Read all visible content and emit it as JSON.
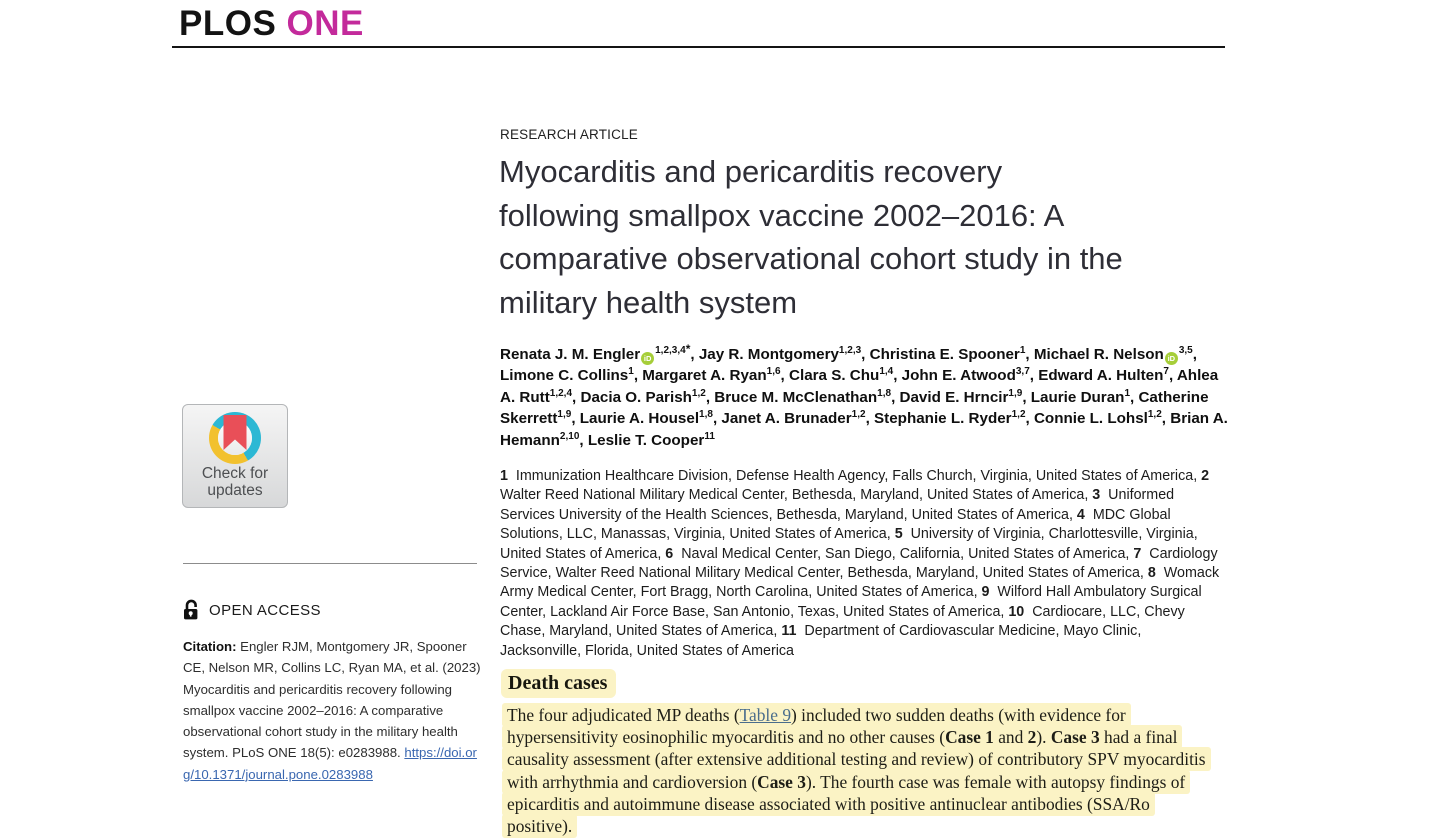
{
  "colors": {
    "brand_magenta": "#c32a9b",
    "highlight": "#fbf3c5",
    "link_blue": "#3a67b0",
    "table_link": "#4a6d8c",
    "orcid_green": "#a6ce39",
    "cm_teal": "#2cb8d4",
    "cm_yellow": "#f2c12e",
    "cm_red": "#e94f58"
  },
  "header": {
    "brand_plos": "PLOS ",
    "brand_one": "ONE"
  },
  "sidebar": {
    "check_updates_label": "Check for updates",
    "open_access_label": "OPEN ACCESS",
    "citation_label": "Citation:",
    "citation_text": " Engler RJM, Montgomery JR, Spooner CE, Nelson MR, Collins LC, Ryan MA, et al. (2023) Myocarditis and pericarditis recovery following smallpox vaccine 2002–2016: A comparative observational cohort study in the military health system. PLoS ONE 18(5): e0283988. ",
    "citation_link": "https://doi.org/10.1371/journal.pone.0283988"
  },
  "article": {
    "kicker": "RESEARCH ARTICLE",
    "title_lines": [
      "Myocarditis and pericarditis recovery",
      "following smallpox vaccine 2002–2016: A",
      "comparative observational cohort study in the",
      "military health system"
    ],
    "authors": [
      {
        "name": "Renata J. M. Engler",
        "orcid": true,
        "sup": "1,2,3,4",
        "ast": true
      },
      {
        "name": "Jay R. Montgomery",
        "sup": "1,2,3"
      },
      {
        "name": "Christina E. Spooner",
        "sup": "1"
      },
      {
        "name": "Michael R. Nelson",
        "orcid": true,
        "sup": "3,5"
      },
      {
        "name": "Limone C. Collins",
        "sup": "1"
      },
      {
        "name": "Margaret A. Ryan",
        "sup": "1,6"
      },
      {
        "name": "Clara S. Chu",
        "sup": "1,4"
      },
      {
        "name": "John E. Atwood",
        "sup": "3,7"
      },
      {
        "name": "Edward A. Hulten",
        "sup": "7"
      },
      {
        "name": "Ahlea A. Rutt",
        "sup": "1,2,4"
      },
      {
        "name": "Dacia O. Parish",
        "sup": "1,2"
      },
      {
        "name": "Bruce M. McClenathan",
        "sup": "1,8"
      },
      {
        "name": "David E. Hrncir",
        "sup": "1,9"
      },
      {
        "name": "Laurie Duran",
        "sup": "1"
      },
      {
        "name": "Catherine Skerrett",
        "sup": "1,9"
      },
      {
        "name": "Laurie A. Housel",
        "sup": "1,8"
      },
      {
        "name": "Janet A. Brunader",
        "sup": "1,2"
      },
      {
        "name": "Stephanie L. Ryder",
        "sup": "1,2"
      },
      {
        "name": "Connie L. Lohsl",
        "sup": "1,2"
      },
      {
        "name": "Brian A. Hemann",
        "sup": "2,10"
      },
      {
        "name": "Leslie T. Cooper",
        "sup": "11"
      }
    ],
    "affiliations": [
      {
        "num": "1",
        "text": "Immunization Healthcare Division, Defense Health Agency, Falls Church, Virginia, United States of America"
      },
      {
        "num": "2",
        "text": "Walter Reed National Military Medical Center, Bethesda, Maryland, United States of America"
      },
      {
        "num": "3",
        "text": "Uniformed Services University of the Health Sciences, Bethesda, Maryland, United States of America"
      },
      {
        "num": "4",
        "text": "MDC Global Solutions, LLC, Manassas, Virginia, United States of America"
      },
      {
        "num": "5",
        "text": "University of Virginia, Charlottesville, Virginia, United States of America"
      },
      {
        "num": "6",
        "text": "Naval Medical Center, San Diego, California, United States of America"
      },
      {
        "num": "7",
        "text": "Cardiology Service, Walter Reed National Military Medical Center, Bethesda, Maryland, United States of America"
      },
      {
        "num": "8",
        "text": "Womack Army Medical Center, Fort Bragg, North Carolina, United States of America"
      },
      {
        "num": "9",
        "text": "Wilford Hall Ambulatory Surgical Center, Lackland Air Force Base, San Antonio, Texas, United States of America"
      },
      {
        "num": "10",
        "text": "Cardiocare, LLC, Chevy Chase, Maryland, United States of America"
      },
      {
        "num": "11",
        "text": "Department of Cardiovascular Medicine, Mayo Clinic, Jacksonville, Florida, United States of America"
      }
    ],
    "section": {
      "heading": "Death cases",
      "segments": [
        {
          "t": "The four adjudicated MP deaths ("
        },
        {
          "t": "Table 9",
          "link": true
        },
        {
          "t": ") included two sudden deaths (with evidence for hypersensitivity eosinophilic myocarditis and no other causes ("
        },
        {
          "t": "Case 1",
          "b": true
        },
        {
          "t": " and "
        },
        {
          "t": "2",
          "b": true
        },
        {
          "t": "). "
        },
        {
          "t": "Case 3",
          "b": true
        },
        {
          "t": " had a final causality assessment (after extensive additional testing and review) of contributory SPV myocarditis with arrhythmia and cardioversion ("
        },
        {
          "t": "Case 3",
          "b": true
        },
        {
          "t": "). The fourth case was female with autopsy findings of epicarditis and autoimmune disease associated with positive antinuclear antibodies (SSA/Ro positive)."
        }
      ]
    }
  }
}
